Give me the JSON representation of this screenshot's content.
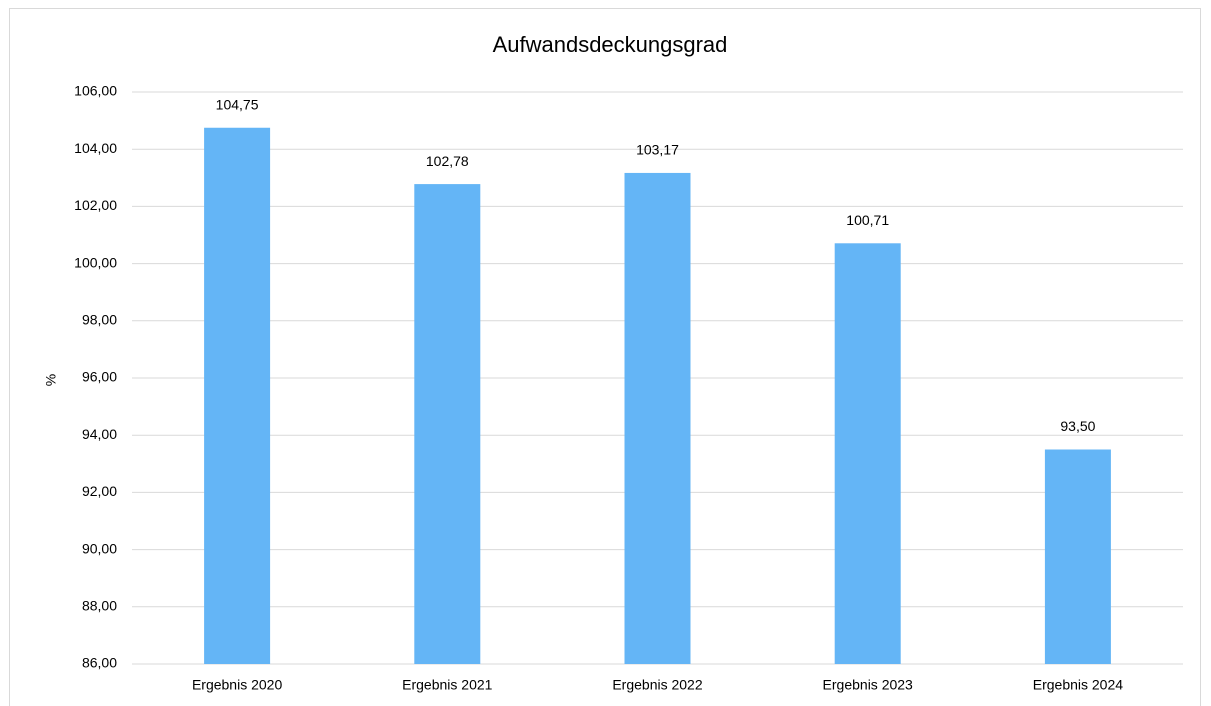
{
  "chart_data": {
    "type": "bar",
    "title": "Aufwandsdeckungsgrad",
    "y_label": "%",
    "categories": [
      "Ergebnis 2020",
      "Ergebnis 2021",
      "Ergebnis 2022",
      "Ergebnis 2023",
      "Ergebnis 2024"
    ],
    "values": [
      104.75,
      102.78,
      103.17,
      100.71,
      93.5
    ],
    "value_labels": [
      "104,75",
      "102,78",
      "103,17",
      "100,71",
      "93,50"
    ],
    "color": "#64b5f6",
    "ylim": [
      86,
      106
    ],
    "yticks": [
      {
        "value": 86,
        "label": "86,00"
      },
      {
        "value": 88,
        "label": "88,00"
      },
      {
        "value": 90,
        "label": "90,00"
      },
      {
        "value": 92,
        "label": "92,00"
      },
      {
        "value": 94,
        "label": "94,00"
      },
      {
        "value": 96,
        "label": "96,00"
      },
      {
        "value": 98,
        "label": "98,00"
      },
      {
        "value": 100,
        "label": "100,00"
      },
      {
        "value": 102,
        "label": "102,00"
      },
      {
        "value": 104,
        "label": "104,00"
      },
      {
        "value": 106,
        "label": "106,00"
      }
    ],
    "grid": true
  }
}
